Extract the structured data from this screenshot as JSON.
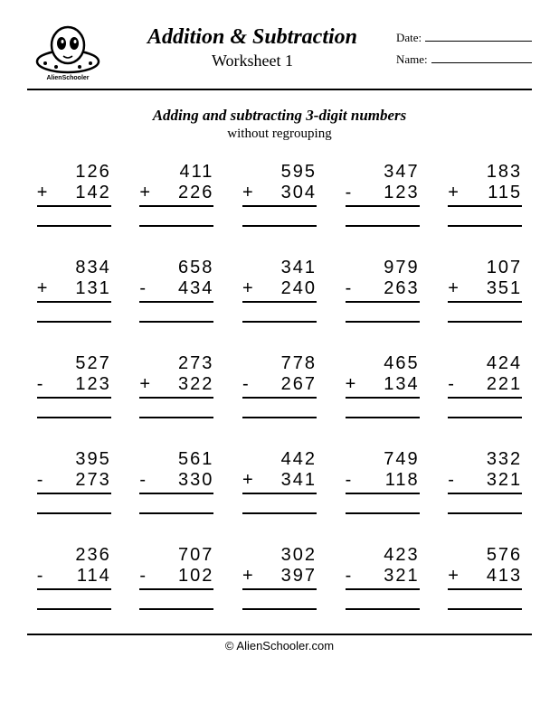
{
  "header": {
    "title": "Addition & Subtraction",
    "subtitle": "Worksheet 1",
    "date_label": "Date:",
    "name_label": "Name:",
    "logo_text": "AlienSchooler"
  },
  "instructions": {
    "main": "Adding and subtracting 3-digit numbers",
    "sub": "without regrouping"
  },
  "problems": [
    {
      "op": "+",
      "a": "126",
      "b": "142"
    },
    {
      "op": "+",
      "a": "411",
      "b": "226"
    },
    {
      "op": "+",
      "a": "595",
      "b": "304"
    },
    {
      "op": "-",
      "a": "347",
      "b": "123"
    },
    {
      "op": "+",
      "a": "183",
      "b": "115"
    },
    {
      "op": "+",
      "a": "834",
      "b": "131"
    },
    {
      "op": "-",
      "a": "658",
      "b": "434"
    },
    {
      "op": "+",
      "a": "341",
      "b": "240"
    },
    {
      "op": "-",
      "a": "979",
      "b": "263"
    },
    {
      "op": "+",
      "a": "107",
      "b": "351"
    },
    {
      "op": "-",
      "a": "527",
      "b": "123"
    },
    {
      "op": "+",
      "a": "273",
      "b": "322"
    },
    {
      "op": "-",
      "a": "778",
      "b": "267"
    },
    {
      "op": "+",
      "a": "465",
      "b": "134"
    },
    {
      "op": "-",
      "a": "424",
      "b": "221"
    },
    {
      "op": "-",
      "a": "395",
      "b": "273"
    },
    {
      "op": "-",
      "a": "561",
      "b": "330"
    },
    {
      "op": "+",
      "a": "442",
      "b": "341"
    },
    {
      "op": "-",
      "a": "749",
      "b": "118"
    },
    {
      "op": "-",
      "a": "332",
      "b": "321"
    },
    {
      "op": "-",
      "a": "236",
      "b": "114"
    },
    {
      "op": "-",
      "a": "707",
      "b": "102"
    },
    {
      "op": "+",
      "a": "302",
      "b": "397"
    },
    {
      "op": "-",
      "a": "423",
      "b": "321"
    },
    {
      "op": "+",
      "a": "576",
      "b": "413"
    }
  ],
  "footer": "© AlienSchooler.com",
  "style": {
    "page_bg": "#ffffff",
    "text_color": "#000000",
    "rule_color": "#000000",
    "title_fontsize": 24,
    "subtitle_fontsize": 18,
    "problem_fontsize": 20,
    "columns": 5,
    "rows": 5
  }
}
